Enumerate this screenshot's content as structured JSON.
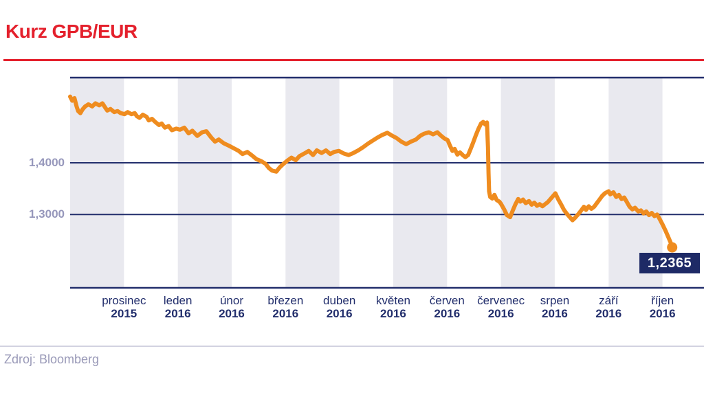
{
  "header": {
    "title": "Kurz GPB/EUR"
  },
  "source": {
    "label": "Zdroj: Bloomberg"
  },
  "chart_data": {
    "type": "line",
    "title": "Kurz GPB/EUR",
    "legend_position": "none",
    "grid": true,
    "x_axis": {
      "unit": "months",
      "labels": [
        {
          "month": "prosinec",
          "year": "2015"
        },
        {
          "month": "leden",
          "year": "2016"
        },
        {
          "month": "únor",
          "year": "2016"
        },
        {
          "month": "březen",
          "year": "2016"
        },
        {
          "month": "duben",
          "year": "2016"
        },
        {
          "month": "květen",
          "year": "2016"
        },
        {
          "month": "červen",
          "year": "2016"
        },
        {
          "month": "červenec",
          "year": "2016"
        },
        {
          "month": "srpen",
          "year": "2016"
        },
        {
          "month": "září",
          "year": "2016"
        },
        {
          "month": "říjen",
          "year": "2016"
        }
      ]
    },
    "y_axis": {
      "ticks": [
        {
          "label": "1,4000",
          "value": 1.4
        },
        {
          "label": "1,3000",
          "value": 1.3
        }
      ],
      "range": [
        1.158,
        1.566
      ]
    },
    "last_value": 1.2365,
    "last_value_label": "1,2365",
    "series": [
      {
        "name": "GPB/EUR",
        "points": [
          [
            0,
            1.528
          ],
          [
            0.04,
            1.52
          ],
          [
            0.08,
            1.525
          ],
          [
            0.12,
            1.509
          ],
          [
            0.15,
            1.5
          ],
          [
            0.19,
            1.496
          ],
          [
            0.23,
            1.503
          ],
          [
            0.28,
            1.509
          ],
          [
            0.34,
            1.513
          ],
          [
            0.41,
            1.509
          ],
          [
            0.47,
            1.515
          ],
          [
            0.54,
            1.511
          ],
          [
            0.6,
            1.515
          ],
          [
            0.65,
            1.507
          ],
          [
            0.69,
            1.501
          ],
          [
            0.75,
            1.504
          ],
          [
            0.82,
            1.498
          ],
          [
            0.88,
            1.5
          ],
          [
            0.94,
            1.496
          ],
          [
            1.01,
            1.494
          ],
          [
            1.07,
            1.498
          ],
          [
            1.14,
            1.494
          ],
          [
            1.2,
            1.496
          ],
          [
            1.24,
            1.49
          ],
          [
            1.29,
            1.487
          ],
          [
            1.35,
            1.493
          ],
          [
            1.42,
            1.489
          ],
          [
            1.46,
            1.482
          ],
          [
            1.52,
            1.485
          ],
          [
            1.58,
            1.479
          ],
          [
            1.65,
            1.473
          ],
          [
            1.7,
            1.476
          ],
          [
            1.76,
            1.468
          ],
          [
            1.83,
            1.471
          ],
          [
            1.89,
            1.463
          ],
          [
            1.97,
            1.466
          ],
          [
            2.04,
            1.464
          ],
          [
            2.12,
            1.468
          ],
          [
            2.2,
            1.457
          ],
          [
            2.27,
            1.462
          ],
          [
            2.36,
            1.452
          ],
          [
            2.45,
            1.459
          ],
          [
            2.53,
            1.461
          ],
          [
            2.62,
            1.449
          ],
          [
            2.69,
            1.441
          ],
          [
            2.76,
            1.445
          ],
          [
            2.85,
            1.438
          ],
          [
            2.95,
            1.433
          ],
          [
            3.04,
            1.428
          ],
          [
            3.13,
            1.423
          ],
          [
            3.2,
            1.417
          ],
          [
            3.29,
            1.421
          ],
          [
            3.38,
            1.414
          ],
          [
            3.46,
            1.407
          ],
          [
            3.55,
            1.403
          ],
          [
            3.63,
            1.398
          ],
          [
            3.69,
            1.39
          ],
          [
            3.75,
            1.385
          ],
          [
            3.83,
            1.383
          ],
          [
            3.89,
            1.391
          ],
          [
            3.95,
            1.397
          ],
          [
            4.03,
            1.404
          ],
          [
            4.11,
            1.41
          ],
          [
            4.19,
            1.405
          ],
          [
            4.26,
            1.413
          ],
          [
            4.35,
            1.418
          ],
          [
            4.43,
            1.423
          ],
          [
            4.51,
            1.415
          ],
          [
            4.58,
            1.424
          ],
          [
            4.67,
            1.419
          ],
          [
            4.75,
            1.424
          ],
          [
            4.83,
            1.417
          ],
          [
            4.9,
            1.421
          ],
          [
            4.99,
            1.423
          ],
          [
            5.08,
            1.418
          ],
          [
            5.17,
            1.415
          ],
          [
            5.26,
            1.419
          ],
          [
            5.35,
            1.424
          ],
          [
            5.44,
            1.43
          ],
          [
            5.53,
            1.437
          ],
          [
            5.62,
            1.443
          ],
          [
            5.71,
            1.449
          ],
          [
            5.8,
            1.454
          ],
          [
            5.89,
            1.458
          ],
          [
            5.97,
            1.453
          ],
          [
            6.06,
            1.448
          ],
          [
            6.15,
            1.441
          ],
          [
            6.24,
            1.436
          ],
          [
            6.33,
            1.441
          ],
          [
            6.42,
            1.445
          ],
          [
            6.5,
            1.452
          ],
          [
            6.57,
            1.456
          ],
          [
            6.66,
            1.459
          ],
          [
            6.74,
            1.455
          ],
          [
            6.82,
            1.459
          ],
          [
            6.88,
            1.453
          ],
          [
            6.95,
            1.447
          ],
          [
            7.01,
            1.444
          ],
          [
            7.05,
            1.434
          ],
          [
            7.1,
            1.423
          ],
          [
            7.14,
            1.427
          ],
          [
            7.19,
            1.416
          ],
          [
            7.24,
            1.42
          ],
          [
            7.29,
            1.415
          ],
          [
            7.34,
            1.411
          ],
          [
            7.39,
            1.415
          ],
          [
            7.43,
            1.425
          ],
          [
            7.48,
            1.438
          ],
          [
            7.53,
            1.452
          ],
          [
            7.58,
            1.465
          ],
          [
            7.63,
            1.476
          ],
          [
            7.67,
            1.479
          ],
          [
            7.71,
            1.474
          ],
          [
            7.74,
            1.478
          ],
          [
            7.76,
            1.43
          ],
          [
            7.77,
            1.38
          ],
          [
            7.78,
            1.345
          ],
          [
            7.8,
            1.334
          ],
          [
            7.84,
            1.331
          ],
          [
            7.88,
            1.338
          ],
          [
            7.92,
            1.328
          ],
          [
            7.97,
            1.325
          ],
          [
            8,
            1.321
          ],
          [
            8.06,
            1.31
          ],
          [
            8.11,
            1.299
          ],
          [
            8.17,
            1.295
          ],
          [
            8.22,
            1.308
          ],
          [
            8.27,
            1.32
          ],
          [
            8.32,
            1.33
          ],
          [
            8.36,
            1.325
          ],
          [
            8.41,
            1.329
          ],
          [
            8.46,
            1.322
          ],
          [
            8.52,
            1.326
          ],
          [
            8.57,
            1.319
          ],
          [
            8.62,
            1.323
          ],
          [
            8.67,
            1.317
          ],
          [
            8.72,
            1.32
          ],
          [
            8.77,
            1.316
          ],
          [
            8.82,
            1.32
          ],
          [
            8.87,
            1.324
          ],
          [
            8.92,
            1.33
          ],
          [
            8.97,
            1.336
          ],
          [
            9.01,
            1.341
          ],
          [
            9.06,
            1.33
          ],
          [
            9.12,
            1.319
          ],
          [
            9.17,
            1.309
          ],
          [
            9.22,
            1.302
          ],
          [
            9.27,
            1.296
          ],
          [
            9.33,
            1.289
          ],
          [
            9.38,
            1.294
          ],
          [
            9.43,
            1.3
          ],
          [
            9.49,
            1.308
          ],
          [
            9.54,
            1.315
          ],
          [
            9.58,
            1.309
          ],
          [
            9.63,
            1.316
          ],
          [
            9.68,
            1.311
          ],
          [
            9.73,
            1.315
          ],
          [
            9.78,
            1.322
          ],
          [
            9.83,
            1.329
          ],
          [
            9.88,
            1.336
          ],
          [
            9.93,
            1.341
          ],
          [
            10,
            1.345
          ],
          [
            10.03,
            1.339
          ],
          [
            10.09,
            1.343
          ],
          [
            10.14,
            1.334
          ],
          [
            10.19,
            1.338
          ],
          [
            10.24,
            1.33
          ],
          [
            10.29,
            1.333
          ],
          [
            10.34,
            1.324
          ],
          [
            10.39,
            1.315
          ],
          [
            10.44,
            1.31
          ],
          [
            10.49,
            1.313
          ],
          [
            10.55,
            1.306
          ],
          [
            10.6,
            1.308
          ],
          [
            10.65,
            1.302
          ],
          [
            10.7,
            1.306
          ],
          [
            10.75,
            1.299
          ],
          [
            10.8,
            1.303
          ],
          [
            10.85,
            1.297
          ],
          [
            10.9,
            1.3
          ],
          [
            10.95,
            1.291
          ],
          [
            11,
            1.281
          ],
          [
            11.06,
            1.268
          ],
          [
            11.11,
            1.256
          ],
          [
            11.15,
            1.246
          ],
          [
            11.18,
            1.2365
          ]
        ]
      }
    ]
  },
  "colors": {
    "accent_red": "#e4202c",
    "navy": "#222e6c",
    "line_orange": "#ef8c1f",
    "band_gray": "#e9e9ef",
    "muted_tick": "#9697bb",
    "separator": "#d2d2e0",
    "badge_bg": "#1e2a66",
    "badge_text": "#ffffff",
    "source_text": "#9a9ab8"
  }
}
